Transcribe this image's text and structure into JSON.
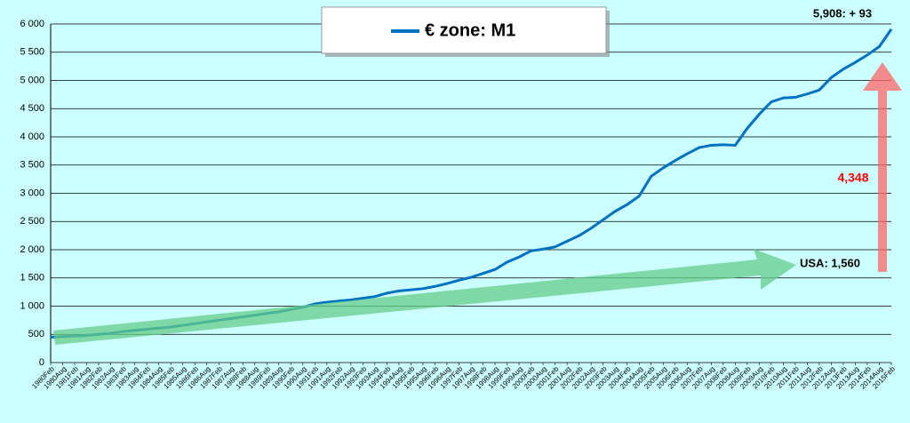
{
  "chart_data": {
    "type": "line",
    "categories": [
      "1980Feb",
      "1980Aug",
      "1981Feb",
      "1981Aug",
      "1982Feb",
      "1982Aug",
      "1983Feb",
      "1983Aug",
      "1984Feb",
      "1984Aug",
      "1985Feb",
      "1985Aug",
      "1986Feb",
      "1986Aug",
      "1987Feb",
      "1987Aug",
      "1988Feb",
      "1988Aug",
      "1989Feb",
      "1989Aug",
      "1990Feb",
      "1990Aug",
      "1991Feb",
      "1991Aug",
      "1992Feb",
      "1992Aug",
      "1993Feb",
      "1993Aug",
      "1994Feb",
      "1994Aug",
      "1995Feb",
      "1995Aug",
      "1996Feb",
      "1996Aug",
      "1997Feb",
      "1997Aug",
      "1998Feb",
      "1998Aug",
      "1999Feb",
      "1999Aug",
      "2000Feb",
      "2000Aug",
      "2001Feb",
      "2001Aug",
      "2002Feb",
      "2002Aug",
      "2003Feb",
      "2003Aug",
      "2004Feb",
      "2004Aug",
      "2005Feb",
      "2005Aug",
      "2006Feb",
      "2006Aug",
      "2007Feb",
      "2007Aug",
      "2008Feb",
      "2008Aug",
      "2009Feb",
      "2009Aug",
      "2010Feb",
      "2010Aug",
      "2011Feb",
      "2011Aug",
      "2012Feb",
      "2012Aug",
      "2013Feb",
      "2013Aug",
      "2014Feb",
      "2014Aug",
      "2015Feb"
    ],
    "series": [
      {
        "name": "€ zone: M1",
        "color": "#0070c0",
        "values": [
          450,
          460,
          470,
          480,
          500,
          520,
          550,
          570,
          590,
          610,
          630,
          660,
          690,
          720,
          750,
          780,
          810,
          840,
          870,
          900,
          940,
          980,
          1040,
          1070,
          1090,
          1110,
          1140,
          1170,
          1230,
          1270,
          1290,
          1310,
          1350,
          1400,
          1460,
          1510,
          1580,
          1650,
          1780,
          1870,
          1980,
          2010,
          2050,
          2150,
          2250,
          2380,
          2530,
          2680,
          2800,
          2950,
          3300,
          3450,
          3580,
          3700,
          3810,
          3850,
          3860,
          3850,
          4150,
          4400,
          4620,
          4690,
          4700,
          4760,
          4830,
          5050,
          5200,
          5320,
          5450,
          5600,
          5908
        ]
      }
    ],
    "ylim": [
      0,
      6000
    ],
    "yticks": [
      0,
      {
        "value": 500,
        "label": "500"
      },
      {
        "value": 1000,
        "label": "1 000"
      },
      {
        "value": 1500,
        "label": "1 500"
      },
      {
        "value": 2000,
        "label": "2 000"
      },
      {
        "value": 2500,
        "label": "2 500"
      },
      {
        "value": 3000,
        "label": "3 000"
      },
      {
        "value": 3500,
        "label": "3 500"
      },
      {
        "value": 4000,
        "label": "4 000"
      },
      {
        "value": 4500,
        "label": "4 500"
      },
      {
        "value": 5000,
        "label": "5 000"
      },
      {
        "value": 5500,
        "label": "5 500"
      },
      {
        "value": 6000,
        "label": "6 000"
      }
    ],
    "grid": true,
    "annotations": [
      {
        "text": "5,908: + 93",
        "color": "#000000"
      },
      {
        "text": "4,348",
        "color": "#ff0000"
      },
      {
        "text": "USA: 1,560",
        "color": "#000000"
      }
    ]
  }
}
